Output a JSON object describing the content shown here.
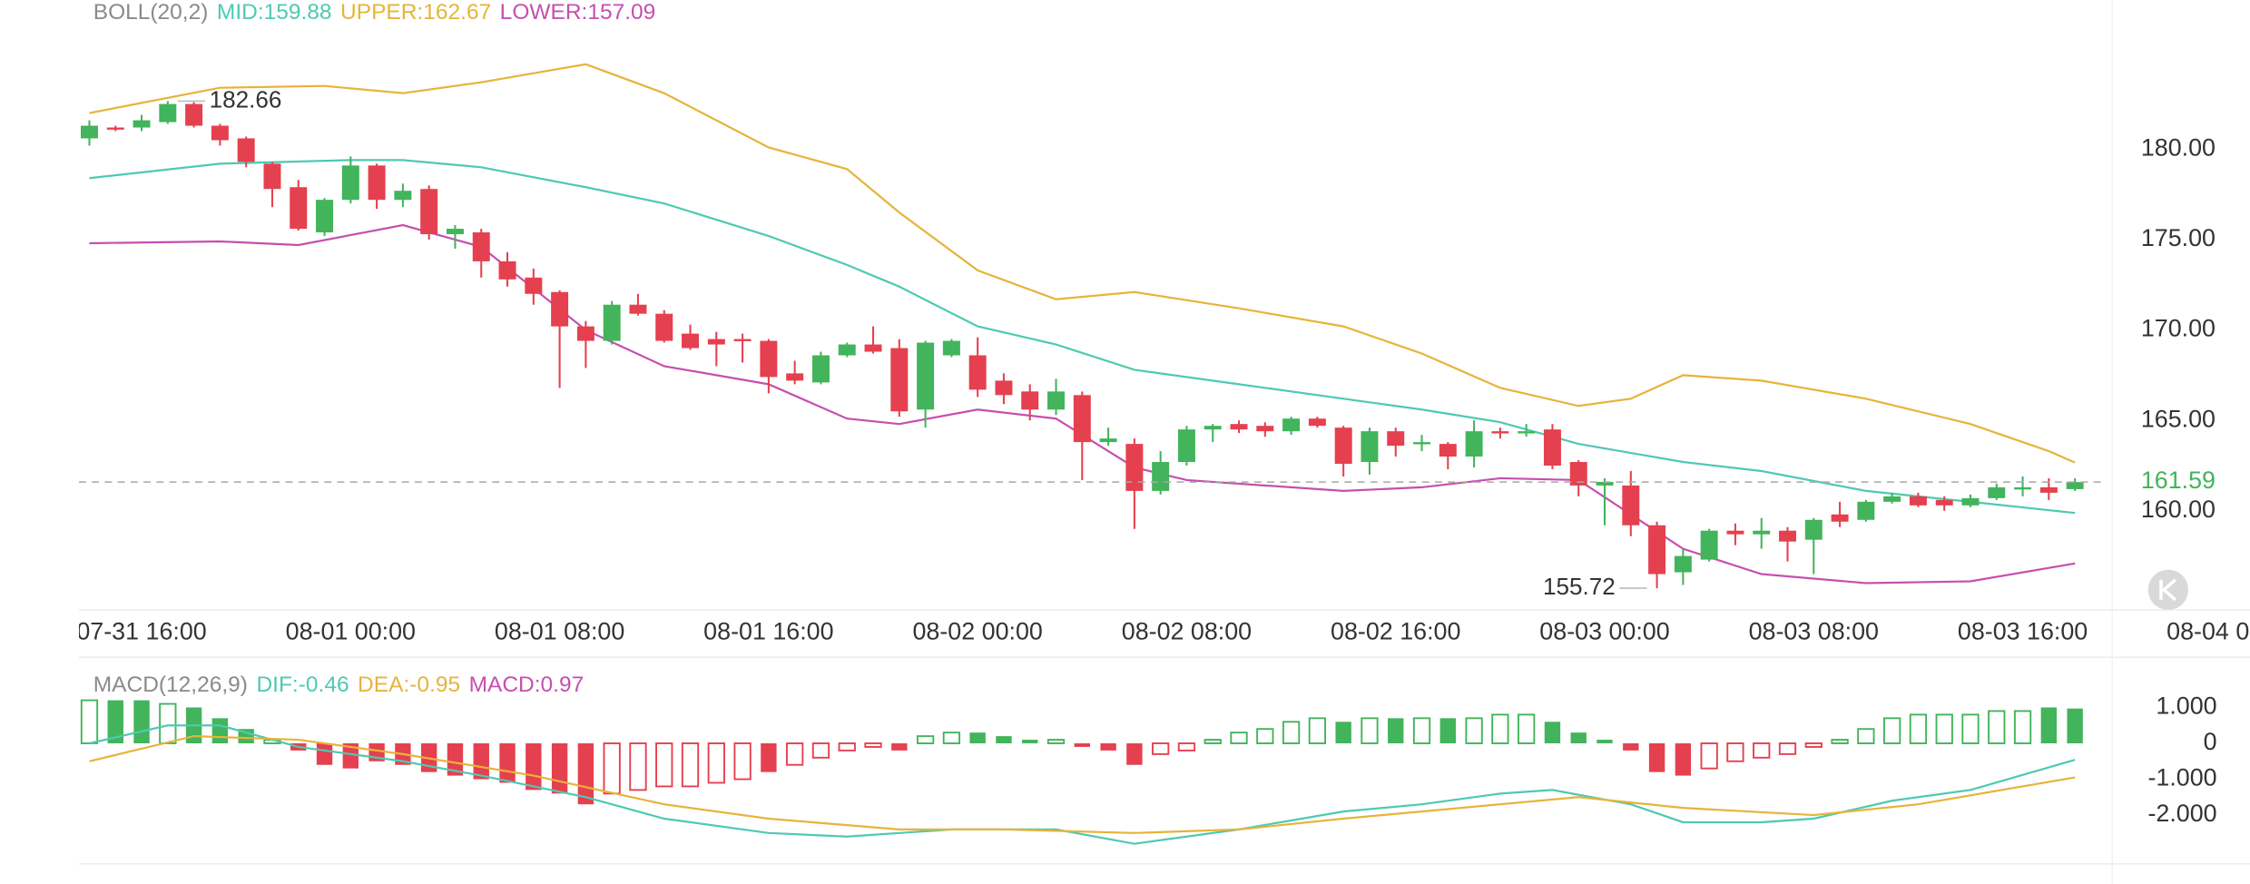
{
  "chart_data": [
    {
      "type": "candlestick",
      "title": "BOLL(20,2)",
      "up_color": "#42b45b",
      "down_color": "#e5404f",
      "xlim": [
        -0.4,
        82.7
      ],
      "ylim": [
        154.52,
        187.06
      ],
      "xticks": [
        {
          "value": 2,
          "label": "07-31 16:00"
        },
        {
          "value": 10,
          "label": "08-01 00:00"
        },
        {
          "value": 18,
          "label": "08-01 08:00"
        },
        {
          "value": 26,
          "label": "08-01 16:00"
        },
        {
          "value": 34,
          "label": "08-02 00:00"
        },
        {
          "value": 42,
          "label": "08-02 08:00"
        },
        {
          "value": 50,
          "label": "08-02 16:00"
        },
        {
          "value": 58,
          "label": "08-03 00:00"
        },
        {
          "value": 66,
          "label": "08-03 08:00"
        },
        {
          "value": 74,
          "label": "08-03 16:00"
        },
        {
          "value": 82,
          "label": "08-04 00:00"
        }
      ],
      "yticks": [
        {
          "value": 180,
          "label": "180.00"
        },
        {
          "value": 175,
          "label": "175.00"
        },
        {
          "value": 170,
          "label": "170.00"
        },
        {
          "value": 165,
          "label": "165.00"
        },
        {
          "value": 160,
          "label": "160.00"
        }
      ],
      "candles": [
        [
          180.6,
          181.6,
          180.2,
          181.3
        ],
        [
          181.2,
          181.3,
          181.0,
          181.1
        ],
        [
          181.2,
          181.9,
          181.0,
          181.6
        ],
        [
          181.5,
          182.66,
          181.4,
          182.5
        ],
        [
          182.5,
          182.6,
          181.2,
          181.3
        ],
        [
          181.3,
          181.4,
          180.2,
          180.5
        ],
        [
          180.6,
          180.7,
          179.0,
          179.3
        ],
        [
          179.2,
          179.3,
          176.8,
          177.8
        ],
        [
          177.9,
          178.3,
          175.5,
          175.6
        ],
        [
          175.4,
          177.3,
          175.2,
          177.2
        ],
        [
          177.2,
          179.6,
          177.0,
          179.1
        ],
        [
          179.1,
          179.2,
          176.7,
          177.2
        ],
        [
          177.2,
          178.1,
          176.8,
          177.7
        ],
        [
          177.8,
          178.0,
          175.0,
          175.3
        ],
        [
          175.3,
          175.8,
          174.5,
          175.6
        ],
        [
          175.4,
          175.6,
          172.9,
          173.8
        ],
        [
          173.8,
          174.3,
          172.4,
          172.8
        ],
        [
          172.9,
          173.4,
          171.4,
          172.0
        ],
        [
          172.1,
          172.2,
          166.8,
          170.2
        ],
        [
          170.2,
          170.5,
          167.9,
          169.4
        ],
        [
          169.4,
          171.6,
          169.2,
          171.4
        ],
        [
          171.4,
          172.0,
          170.8,
          170.9
        ],
        [
          170.9,
          171.1,
          169.3,
          169.4
        ],
        [
          169.8,
          170.3,
          168.9,
          169.0
        ],
        [
          169.5,
          169.9,
          168.0,
          169.2
        ],
        [
          169.5,
          169.8,
          168.2,
          169.4
        ],
        [
          169.4,
          169.5,
          166.5,
          167.4
        ],
        [
          167.6,
          168.3,
          167.0,
          167.2
        ],
        [
          167.1,
          168.8,
          167.0,
          168.6
        ],
        [
          168.6,
          169.3,
          168.5,
          169.2
        ],
        [
          169.2,
          170.2,
          168.7,
          168.8
        ],
        [
          169.0,
          169.5,
          165.2,
          165.5
        ],
        [
          165.6,
          169.4,
          164.6,
          169.3
        ],
        [
          168.6,
          169.5,
          168.5,
          169.4
        ],
        [
          168.6,
          169.6,
          166.3,
          166.7
        ],
        [
          167.2,
          167.6,
          165.9,
          166.4
        ],
        [
          166.6,
          167.0,
          165.0,
          165.6
        ],
        [
          165.6,
          167.3,
          165.3,
          166.6
        ],
        [
          166.4,
          166.6,
          161.7,
          163.8
        ],
        [
          163.8,
          164.6,
          163.6,
          164.0
        ],
        [
          163.7,
          164.0,
          159.0,
          161.1
        ],
        [
          161.1,
          163.3,
          160.9,
          162.7
        ],
        [
          162.7,
          164.7,
          162.5,
          164.5
        ],
        [
          164.5,
          164.8,
          163.8,
          164.7
        ],
        [
          164.8,
          165.0,
          164.3,
          164.5
        ],
        [
          164.7,
          164.9,
          164.1,
          164.4
        ],
        [
          164.4,
          165.2,
          164.2,
          165.1
        ],
        [
          165.1,
          165.2,
          164.6,
          164.7
        ],
        [
          164.6,
          164.7,
          161.9,
          162.6
        ],
        [
          162.7,
          164.6,
          162.0,
          164.4
        ],
        [
          164.4,
          164.6,
          163.0,
          163.6
        ],
        [
          163.7,
          164.2,
          163.3,
          163.8
        ],
        [
          163.7,
          163.8,
          162.3,
          163.0
        ],
        [
          163.0,
          165.0,
          162.4,
          164.4
        ],
        [
          164.4,
          164.6,
          164.0,
          164.3
        ],
        [
          164.3,
          164.8,
          164.1,
          164.4
        ],
        [
          164.5,
          164.8,
          162.3,
          162.5
        ],
        [
          162.7,
          162.8,
          160.8,
          161.4
        ],
        [
          161.4,
          161.8,
          159.2,
          161.6
        ],
        [
          161.4,
          162.2,
          158.6,
          159.2
        ],
        [
          159.2,
          159.4,
          155.72,
          156.5
        ],
        [
          156.6,
          157.9,
          155.9,
          157.5
        ],
        [
          157.3,
          159.0,
          157.2,
          158.9
        ],
        [
          158.9,
          159.3,
          158.1,
          158.7
        ],
        [
          158.7,
          159.6,
          157.9,
          158.9
        ],
        [
          158.9,
          159.1,
          157.2,
          158.3
        ],
        [
          158.4,
          159.6,
          156.5,
          159.5
        ],
        [
          159.8,
          160.5,
          159.1,
          159.4
        ],
        [
          159.5,
          160.6,
          159.4,
          160.5
        ],
        [
          160.5,
          161.0,
          160.4,
          160.8
        ],
        [
          160.8,
          161.0,
          160.2,
          160.3
        ],
        [
          160.6,
          160.8,
          160.0,
          160.3
        ],
        [
          160.3,
          160.9,
          160.2,
          160.7
        ],
        [
          160.7,
          161.5,
          160.6,
          161.3
        ],
        [
          161.2,
          161.9,
          160.8,
          161.3
        ],
        [
          161.3,
          161.8,
          160.6,
          161.0
        ],
        [
          161.2,
          161.8,
          161.1,
          161.59
        ]
      ],
      "series": [
        {
          "name": "MID:159.88",
          "color": "#4fc9b2",
          "x": [
            0,
            5,
            10,
            12,
            15,
            19,
            22,
            26,
            29,
            31,
            34,
            37,
            40,
            44,
            48,
            51,
            54,
            57,
            59,
            61,
            64,
            68,
            72,
            76
          ],
          "values": [
            178.4,
            179.2,
            179.4,
            179.4,
            179.0,
            177.9,
            177.0,
            175.2,
            173.6,
            172.4,
            170.2,
            169.2,
            167.8,
            167.0,
            166.2,
            165.6,
            164.9,
            163.7,
            163.2,
            162.7,
            162.2,
            161.1,
            160.5,
            159.88
          ]
        },
        {
          "name": "UPPER:162.67",
          "color": "#e6b43a",
          "x": [
            0,
            5,
            9,
            12,
            15,
            19,
            22,
            26,
            29,
            31,
            34,
            37,
            40,
            44,
            48,
            51,
            54,
            57,
            59,
            61,
            64,
            68,
            72,
            75,
            76
          ],
          "values": [
            182.0,
            183.4,
            183.5,
            183.1,
            183.7,
            184.7,
            183.1,
            180.1,
            178.9,
            176.5,
            173.3,
            171.7,
            172.1,
            171.2,
            170.2,
            168.7,
            166.8,
            165.8,
            166.2,
            167.5,
            167.2,
            166.2,
            164.8,
            163.3,
            162.67
          ]
        },
        {
          "name": "LOWER:157.09",
          "color": "#c64fae",
          "x": [
            0,
            5,
            8,
            12,
            15,
            19,
            22,
            26,
            29,
            31,
            34,
            37,
            40,
            42,
            46,
            48,
            51,
            54,
            57,
            59,
            61,
            64,
            68,
            72,
            76
          ],
          "values": [
            174.8,
            174.9,
            174.7,
            175.8,
            174.6,
            170.0,
            168.0,
            167.0,
            165.1,
            164.8,
            165.6,
            165.1,
            162.4,
            161.7,
            161.3,
            161.1,
            161.3,
            161.8,
            161.7,
            159.8,
            157.9,
            156.5,
            156.0,
            156.1,
            157.09
          ]
        }
      ]
    },
    {
      "type": "macd",
      "title": "MACD(12,26,9)",
      "ylim": [
        -3.28,
        1.6
      ],
      "yticks": [
        {
          "value": 1,
          "label": "1.000"
        },
        0,
        {
          "value": -1,
          "label": "-1.000"
        },
        {
          "value": -2,
          "label": "-2.000"
        }
      ],
      "histogram": {
        "name": "MACD:0.97",
        "color": "#c64fae",
        "values": [
          1.2,
          1.2,
          1.2,
          1.1,
          1.0,
          0.7,
          0.4,
          0.1,
          -0.2,
          -0.6,
          -0.7,
          -0.5,
          -0.6,
          -0.8,
          -0.9,
          -1.0,
          -1.1,
          -1.3,
          -1.4,
          -1.7,
          -1.4,
          -1.3,
          -1.2,
          -1.2,
          -1.1,
          -1.0,
          -0.8,
          -0.6,
          -0.4,
          -0.2,
          -0.1,
          -0.2,
          0.2,
          0.3,
          0.3,
          0.2,
          0.1,
          0.1,
          -0.1,
          -0.2,
          -0.6,
          -0.3,
          -0.2,
          0.1,
          0.3,
          0.4,
          0.6,
          0.7,
          0.6,
          0.7,
          0.7,
          0.7,
          0.7,
          0.7,
          0.8,
          0.8,
          0.6,
          0.3,
          0.1,
          -0.2,
          -0.8,
          -0.9,
          -0.7,
          -0.5,
          -0.4,
          -0.3,
          -0.1,
          0.1,
          0.4,
          0.7,
          0.8,
          0.8,
          0.8,
          0.9,
          0.9,
          1.0,
          0.97
        ],
        "hollow": [
          true,
          false,
          false,
          true,
          false,
          false,
          false,
          true,
          false,
          false,
          false,
          false,
          false,
          false,
          false,
          false,
          false,
          false,
          false,
          false,
          true,
          true,
          true,
          true,
          true,
          true,
          false,
          true,
          true,
          true,
          true,
          false,
          true,
          true,
          false,
          false,
          false,
          true,
          false,
          false,
          false,
          true,
          true,
          true,
          true,
          true,
          true,
          true,
          false,
          true,
          false,
          true,
          false,
          true,
          true,
          true,
          false,
          false,
          false,
          false,
          false,
          false,
          true,
          true,
          true,
          true,
          true,
          true,
          true,
          true,
          true,
          true,
          true,
          true,
          true,
          false,
          false
        ]
      },
      "series": [
        {
          "name": "DIF:-0.46",
          "color": "#4fc9b2",
          "x": [
            0,
            3,
            5,
            8,
            12,
            15,
            19,
            22,
            26,
            29,
            31,
            33,
            37,
            40,
            44,
            48,
            51,
            54,
            56,
            59,
            61,
            64,
            66,
            69,
            72,
            76
          ],
          "values": [
            0,
            0.5,
            0.5,
            -0.1,
            -0.5,
            -0.9,
            -1.5,
            -2.1,
            -2.5,
            -2.6,
            -2.5,
            -2.4,
            -2.4,
            -2.8,
            -2.4,
            -1.9,
            -1.7,
            -1.4,
            -1.3,
            -1.7,
            -2.2,
            -2.2,
            -2.1,
            -1.6,
            -1.3,
            -0.46
          ]
        },
        {
          "name": "DEA:-0.95",
          "color": "#e6b43a",
          "x": [
            0,
            4,
            8,
            12,
            17,
            22,
            26,
            31,
            35,
            40,
            44,
            48,
            54,
            57,
            61,
            66,
            70,
            76
          ],
          "values": [
            -0.5,
            0.2,
            0.1,
            -0.3,
            -0.9,
            -1.7,
            -2.1,
            -2.4,
            -2.4,
            -2.5,
            -2.4,
            -2.1,
            -1.7,
            -1.5,
            -1.8,
            -2.0,
            -1.7,
            -0.95
          ]
        }
      ]
    }
  ]
}
